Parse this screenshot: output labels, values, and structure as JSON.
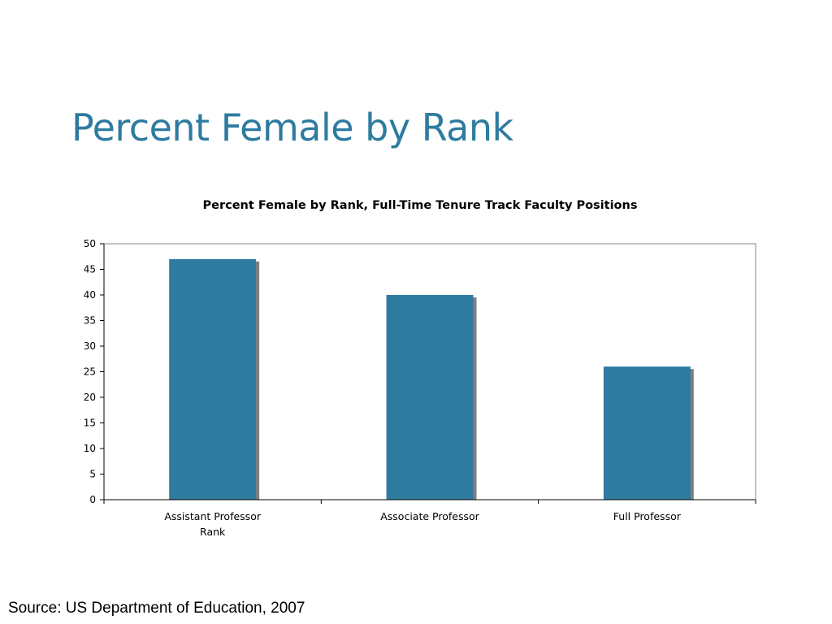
{
  "slide": {
    "title": "Percent Female by Rank",
    "source": "Source: US Department of Education, 2007"
  },
  "colors": {
    "title": "#2e7ba0",
    "bar": "#2e7ba0",
    "bar_shadow": "#7f7f7f",
    "axis": "#000000"
  },
  "chart_data": {
    "type": "bar",
    "title": "Percent Female by Rank, Full-Time Tenure Track Faculty Positions",
    "xlabel": "Rank",
    "ylabel": "",
    "categories": [
      "Assistant Professor",
      "Associate Professor",
      "Full Professor"
    ],
    "values": [
      47,
      40,
      26
    ],
    "ylim": [
      0,
      50
    ],
    "yticks": [
      0,
      5,
      10,
      15,
      20,
      25,
      30,
      35,
      40,
      45,
      50
    ],
    "grid": false,
    "legend": "none"
  }
}
